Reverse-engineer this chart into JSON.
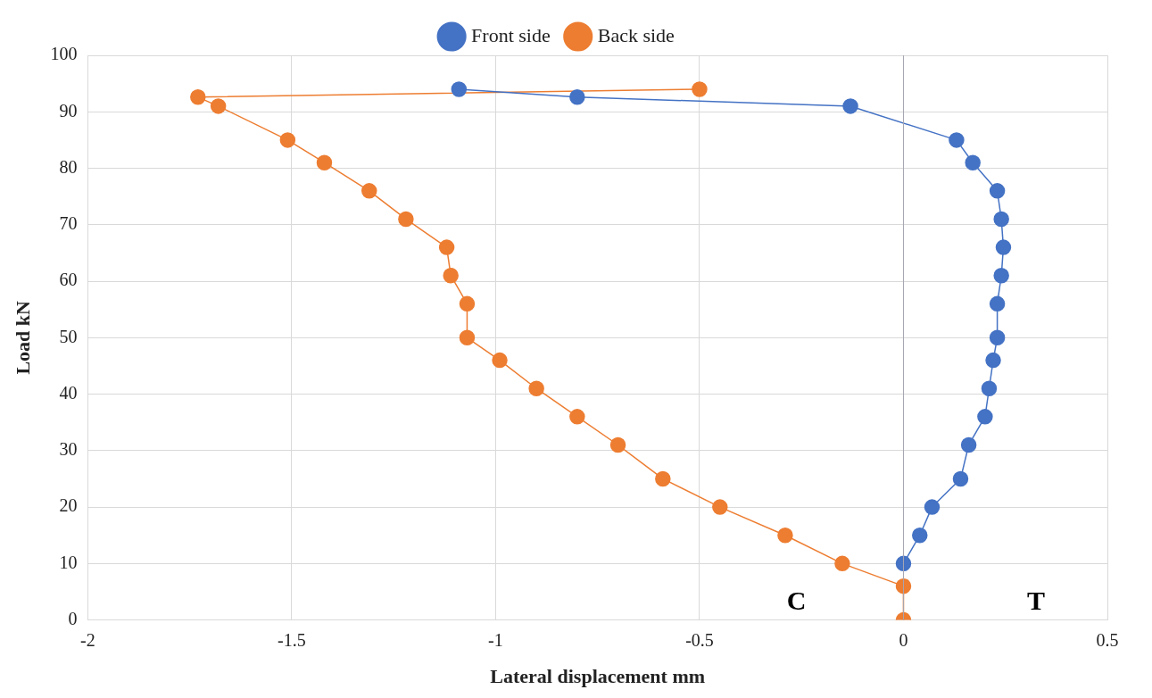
{
  "chart_data": {
    "type": "line",
    "xlabel": "Lateral displacement mm",
    "ylabel": "Load kN",
    "xlim": [
      -2,
      0.5
    ],
    "xticks": [
      -2,
      -1.5,
      -1,
      -0.5,
      0,
      0.5
    ],
    "ylim": [
      0,
      100
    ],
    "yticks": [
      0,
      10,
      20,
      30,
      40,
      50,
      60,
      70,
      80,
      90,
      100
    ],
    "grid": true,
    "legend": "top",
    "marker": "circle",
    "line_style": "solid",
    "ref_lines": [
      {
        "axis": "x",
        "value": 0,
        "color": "#a6a6b3"
      }
    ],
    "annotations": [
      "C",
      "T"
    ],
    "series": [
      {
        "name": "Front side",
        "color": "#4472c4",
        "x": [
          -1.09,
          -0.8,
          -0.13,
          0.13,
          0.17,
          0.23,
          0.24,
          0.245,
          0.24,
          0.23,
          0.23,
          0.22,
          0.21,
          0.2,
          0.16,
          0.14,
          0.07,
          0.04,
          0
        ],
        "values": [
          94,
          92.6,
          91,
          85,
          81,
          76,
          71,
          66,
          61,
          56,
          50,
          46,
          41,
          36,
          31,
          25,
          20,
          15,
          10
        ]
      },
      {
        "name": "Back side",
        "color": "#ed7d31",
        "x": [
          -0.5,
          -1.73,
          -1.68,
          -1.51,
          -1.42,
          -1.31,
          -1.22,
          -1.12,
          -1.11,
          -1.07,
          -1.07,
          -0.99,
          -0.9,
          -0.8,
          -0.7,
          -0.59,
          -0.45,
          -0.29,
          -0.15,
          0,
          0
        ],
        "values": [
          94,
          92.6,
          91,
          85,
          81,
          76,
          71,
          66,
          61,
          56,
          50,
          46,
          41,
          36,
          31,
          25,
          20,
          15,
          10,
          6,
          0
        ]
      }
    ]
  }
}
